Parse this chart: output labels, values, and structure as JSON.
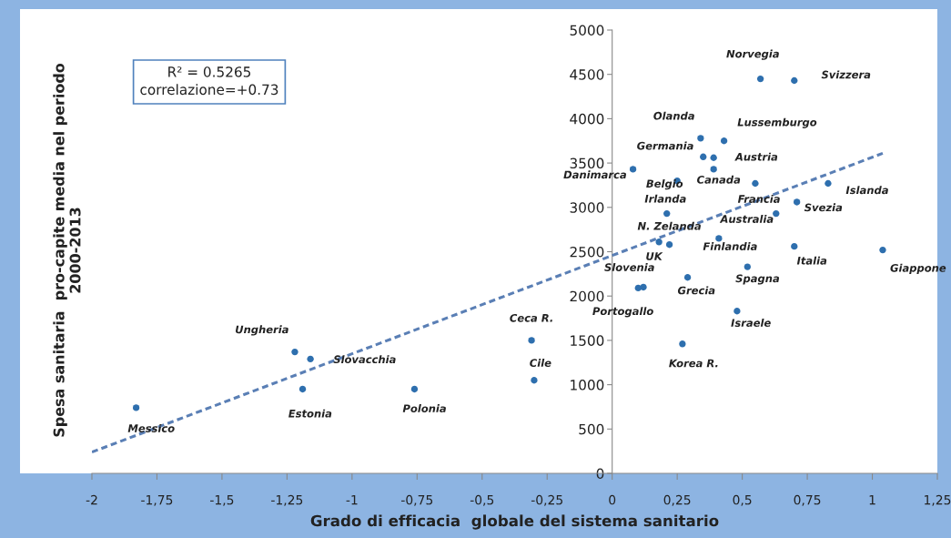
{
  "chart_data": {
    "type": "scatter",
    "xlabel": "Grado di efficacia  globale del sistema sanitario",
    "ylabel": "Spesa sanitaria  pro-capite media nel periodo\n2000-2013",
    "series": [
      {
        "color": "#2e6fae",
        "marker": "circle",
        "x": [
          0.57,
          0.7,
          0.34,
          0.43,
          0.35,
          0.39,
          0.39,
          0.08,
          0.25,
          0.55,
          0.83,
          0.71,
          0.63,
          0.21,
          0.22,
          0.18,
          0.41,
          0.7,
          1.04,
          0.52,
          0.29,
          0.12,
          0.1,
          0.48,
          0.27,
          -0.31,
          -0.3,
          -1.22,
          -1.16,
          -1.19,
          -0.76,
          -1.83
        ],
        "values": [
          4450,
          4430,
          3780,
          3750,
          3570,
          3560,
          3430,
          3430,
          3300,
          3270,
          3270,
          3060,
          2930,
          2930,
          2580,
          2610,
          2650,
          2560,
          2520,
          2330,
          2210,
          2100,
          2090,
          1830,
          1460,
          1500,
          1050,
          1370,
          1290,
          950,
          950,
          740
        ]
      },
      {
        "type": "line",
        "color": "#5a7fb5",
        "line_style": "dashed",
        "marker": "none",
        "x": [
          -2,
          1.04
        ],
        "values": [
          240,
          3610
        ]
      }
    ],
    "annotations": [
      {
        "text": "Norvegia",
        "x": 0.57,
        "y": 4450
      },
      {
        "text": "Svizzera",
        "x": 0.7,
        "y": 4430
      },
      {
        "text": "Olanda",
        "x": 0.34,
        "y": 3780
      },
      {
        "text": "Lussemburgo",
        "x": 0.43,
        "y": 3750
      },
      {
        "text": "Germania",
        "x": 0.35,
        "y": 3570
      },
      {
        "text": "Austria",
        "x": 0.39,
        "y": 3560
      },
      {
        "text": "Canada",
        "x": 0.39,
        "y": 3430
      },
      {
        "text": "Danimarca",
        "x": 0.08,
        "y": 3430
      },
      {
        "text": "Belgio",
        "x": 0.25,
        "y": 3300
      },
      {
        "text": "Francia",
        "x": 0.55,
        "y": 3270
      },
      {
        "text": "Islanda",
        "x": 0.83,
        "y": 3270
      },
      {
        "text": "Svezia",
        "x": 0.71,
        "y": 3060
      },
      {
        "text": "Australia",
        "x": 0.63,
        "y": 2930
      },
      {
        "text": "Irlanda",
        "x": 0.21,
        "y": 2930
      },
      {
        "text": "N. Zelanda",
        "x": 0.22,
        "y": 2580
      },
      {
        "text": "UK",
        "x": 0.18,
        "y": 2610
      },
      {
        "text": "Finlandia",
        "x": 0.41,
        "y": 2650
      },
      {
        "text": "Italia",
        "x": 0.7,
        "y": 2560
      },
      {
        "text": "Giappone",
        "x": 1.04,
        "y": 2520
      },
      {
        "text": "Spagna",
        "x": 0.52,
        "y": 2330
      },
      {
        "text": "Grecia",
        "x": 0.29,
        "y": 2210
      },
      {
        "text": "Slovenia",
        "x": 0.12,
        "y": 2100
      },
      {
        "text": "Portogallo",
        "x": 0.1,
        "y": 2090
      },
      {
        "text": "Israele",
        "x": 0.48,
        "y": 1830
      },
      {
        "text": "Korea R.",
        "x": 0.27,
        "y": 1460
      },
      {
        "text": "Ceca R.",
        "x": -0.31,
        "y": 1500
      },
      {
        "text": "Cile",
        "x": -0.3,
        "y": 1050
      },
      {
        "text": "Ungheria",
        "x": -1.22,
        "y": 1370
      },
      {
        "text": "Slovacchia",
        "x": -1.16,
        "y": 1290
      },
      {
        "text": "Estonia",
        "x": -1.19,
        "y": 950
      },
      {
        "text": "Polonia",
        "x": -0.76,
        "y": 950
      },
      {
        "text": "Messico",
        "x": -1.83,
        "y": 740
      },
      "R² = 0.5265\ncorrelazione=+0.73"
    ],
    "xlim": [
      -2,
      1.25
    ],
    "xticks": [
      -2,
      {
        "value": -1.75,
        "label": "-1,75"
      },
      {
        "value": -1.5,
        "label": "-1,5"
      },
      {
        "value": -1.25,
        "label": "-1,25"
      },
      -1,
      {
        "value": -0.75,
        "label": "-0,75"
      },
      {
        "value": -0.5,
        "label": "-0,5"
      },
      {
        "value": -0.25,
        "label": "-0,25"
      },
      0,
      {
        "value": 0.25,
        "label": "0,25"
      },
      {
        "value": 0.5,
        "label": "0,5"
      },
      {
        "value": 0.75,
        "label": "0,75"
      },
      1,
      {
        "value": 1.25,
        "label": "1,25"
      }
    ],
    "ylim": [
      0,
      5000
    ],
    "yticks": [
      0,
      500,
      1000,
      1500,
      2000,
      2500,
      3000,
      3500,
      4000,
      4500,
      5000
    ],
    "legend": false
  }
}
